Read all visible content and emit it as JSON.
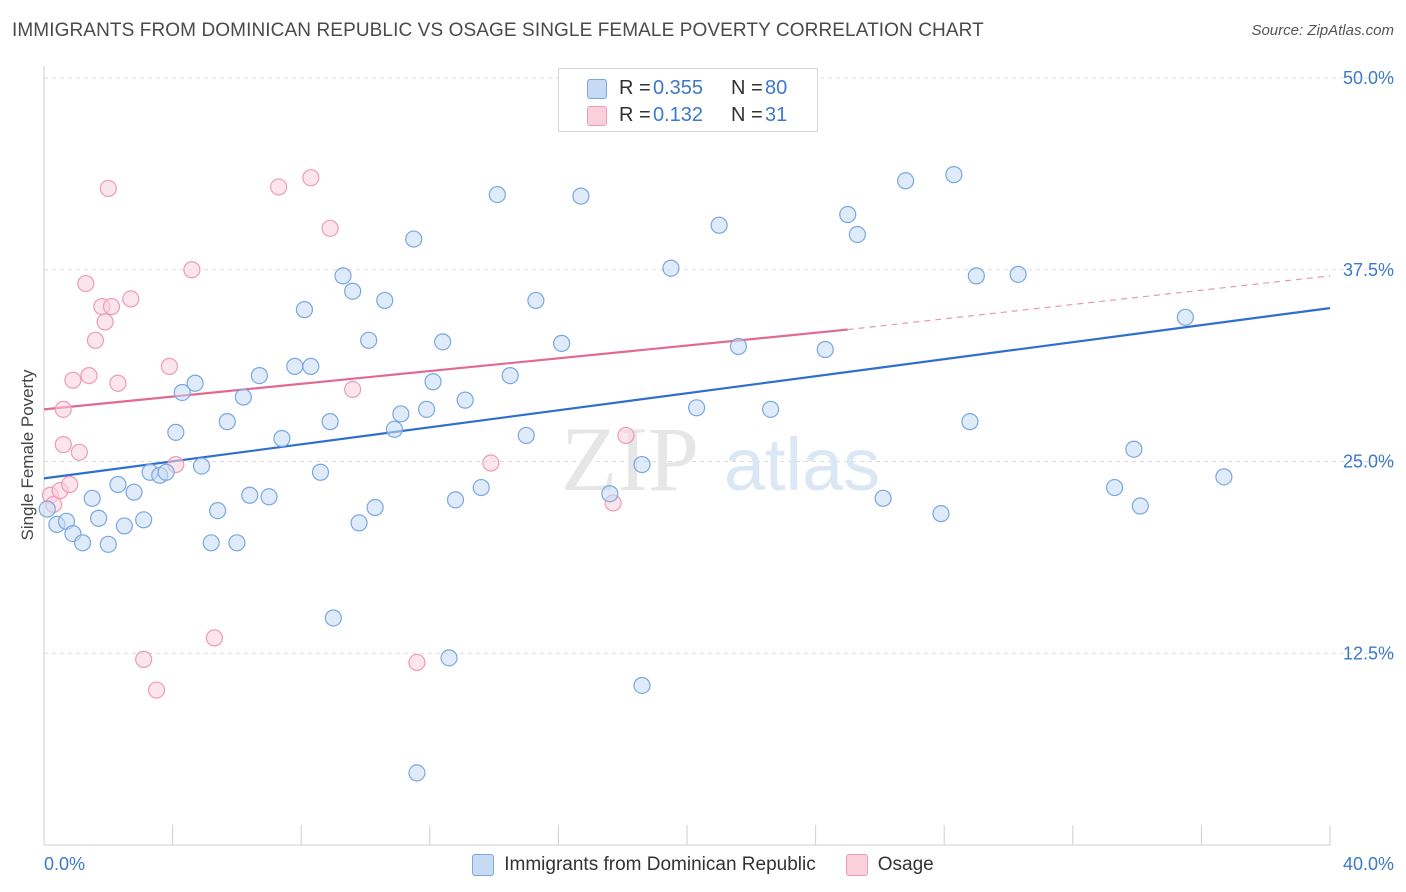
{
  "header": {
    "title": "IMMIGRANTS FROM DOMINICAN REPUBLIC VS OSAGE SINGLE FEMALE POVERTY CORRELATION CHART",
    "source": "Source: ZipAtlas.com"
  },
  "watermark": {
    "zip": "ZIP",
    "atlas": "atlas"
  },
  "stats": [
    {
      "r_label": "R =",
      "r_value": "0.355",
      "n_label": "N =",
      "n_value": "80",
      "color": "#b9d1f2"
    },
    {
      "r_label": "R =",
      "r_value": "0.132",
      "n_label": "N =",
      "n_value": "31",
      "color": "#f8c4d3"
    }
  ],
  "chart_data": {
    "type": "scatter",
    "ylabel": "Single Female Poverty",
    "xlim": [
      0,
      40
    ],
    "ylim": [
      0,
      50
    ],
    "x_tick_labels": [
      "0.0%",
      "40.0%"
    ],
    "y_ticks": [
      12.5,
      25.0,
      37.5,
      50.0
    ],
    "y_tick_labels": [
      "12.5%",
      "25.0%",
      "37.5%",
      "50.0%"
    ],
    "grid": true,
    "legend_position": "bottom",
    "series": [
      {
        "name": "Immigrants from Dominican Republic",
        "color": "#7aa7e0",
        "fill": "#c7daf4",
        "line_color": "#2f6fcc",
        "trend": {
          "x0": 0,
          "y0": 23.9,
          "x1": 40,
          "y1": 35.0
        },
        "points": [
          [
            0.1,
            21.9
          ],
          [
            0.4,
            20.9
          ],
          [
            0.7,
            21.1
          ],
          [
            0.9,
            20.3
          ],
          [
            1.2,
            19.7
          ],
          [
            1.5,
            22.6
          ],
          [
            1.7,
            21.3
          ],
          [
            2.0,
            19.6
          ],
          [
            2.3,
            23.5
          ],
          [
            2.5,
            20.8
          ],
          [
            2.8,
            23.0
          ],
          [
            3.1,
            21.2
          ],
          [
            3.3,
            24.3
          ],
          [
            3.6,
            24.1
          ],
          [
            3.8,
            24.3
          ],
          [
            4.1,
            26.9
          ],
          [
            4.3,
            29.5
          ],
          [
            4.7,
            30.1
          ],
          [
            4.9,
            24.7
          ],
          [
            5.2,
            19.7
          ],
          [
            5.4,
            21.8
          ],
          [
            5.7,
            27.6
          ],
          [
            6.0,
            19.7
          ],
          [
            6.2,
            29.2
          ],
          [
            6.4,
            22.8
          ],
          [
            6.7,
            30.6
          ],
          [
            7.0,
            22.7
          ],
          [
            7.4,
            26.5
          ],
          [
            7.8,
            31.2
          ],
          [
            8.1,
            34.9
          ],
          [
            8.3,
            31.2
          ],
          [
            8.6,
            24.3
          ],
          [
            8.9,
            27.6
          ],
          [
            9.3,
            37.1
          ],
          [
            9.6,
            36.1
          ],
          [
            9.8,
            21.0
          ],
          [
            10.1,
            32.9
          ],
          [
            10.3,
            22.0
          ],
          [
            10.6,
            35.5
          ],
          [
            10.9,
            27.1
          ],
          [
            11.1,
            28.1
          ],
          [
            11.5,
            39.5
          ],
          [
            11.9,
            28.4
          ],
          [
            12.1,
            30.2
          ],
          [
            12.4,
            32.8
          ],
          [
            12.8,
            22.5
          ],
          [
            13.1,
            29.0
          ],
          [
            13.6,
            23.3
          ],
          [
            14.1,
            42.4
          ],
          [
            14.5,
            30.6
          ],
          [
            15.0,
            26.7
          ],
          [
            15.3,
            35.5
          ],
          [
            16.1,
            32.7
          ],
          [
            16.7,
            42.3
          ],
          [
            17.6,
            22.9
          ],
          [
            18.6,
            24.8
          ],
          [
            19.5,
            37.6
          ],
          [
            20.3,
            28.5
          ],
          [
            21.0,
            40.4
          ],
          [
            21.6,
            32.5
          ],
          [
            22.6,
            28.4
          ],
          [
            24.3,
            32.3
          ],
          [
            25.0,
            41.1
          ],
          [
            25.3,
            39.8
          ],
          [
            26.1,
            22.6
          ],
          [
            26.8,
            43.3
          ],
          [
            27.9,
            21.6
          ],
          [
            28.3,
            43.7
          ],
          [
            28.8,
            27.6
          ],
          [
            29.0,
            37.1
          ],
          [
            30.3,
            37.2
          ],
          [
            33.3,
            23.3
          ],
          [
            33.9,
            25.8
          ],
          [
            34.1,
            22.1
          ],
          [
            35.5,
            34.4
          ],
          [
            36.7,
            24.0
          ],
          [
            11.6,
            4.7
          ],
          [
            12.6,
            12.2
          ],
          [
            18.6,
            10.4
          ],
          [
            9.0,
            14.8
          ]
        ]
      },
      {
        "name": "Osage",
        "color": "#ee9bb3",
        "fill": "#f9d0dc",
        "line_color": "#e06a91",
        "trend": {
          "x0": 0,
          "y0": 28.4,
          "x1": 25,
          "y1": 33.6
        },
        "trend_dashed": {
          "x0": 25,
          "y0": 33.6,
          "x1": 40,
          "y1": 37.1
        },
        "points": [
          [
            0.2,
            22.8
          ],
          [
            0.3,
            22.2
          ],
          [
            0.5,
            23.1
          ],
          [
            0.6,
            28.4
          ],
          [
            0.6,
            26.1
          ],
          [
            0.8,
            23.5
          ],
          [
            0.9,
            30.3
          ],
          [
            1.1,
            25.6
          ],
          [
            1.3,
            36.6
          ],
          [
            1.4,
            30.6
          ],
          [
            1.6,
            32.9
          ],
          [
            1.8,
            35.1
          ],
          [
            1.9,
            34.1
          ],
          [
            2.1,
            35.1
          ],
          [
            2.3,
            30.1
          ],
          [
            2.7,
            35.6
          ],
          [
            3.1,
            12.1
          ],
          [
            3.5,
            10.1
          ],
          [
            3.9,
            31.2
          ],
          [
            4.1,
            24.8
          ],
          [
            4.6,
            37.5
          ],
          [
            5.3,
            13.5
          ],
          [
            7.3,
            42.9
          ],
          [
            8.3,
            43.5
          ],
          [
            8.9,
            40.2
          ],
          [
            9.6,
            29.7
          ],
          [
            11.6,
            11.9
          ],
          [
            13.9,
            24.9
          ],
          [
            17.7,
            22.3
          ],
          [
            18.1,
            26.7
          ],
          [
            2.0,
            42.8
          ]
        ]
      }
    ]
  }
}
